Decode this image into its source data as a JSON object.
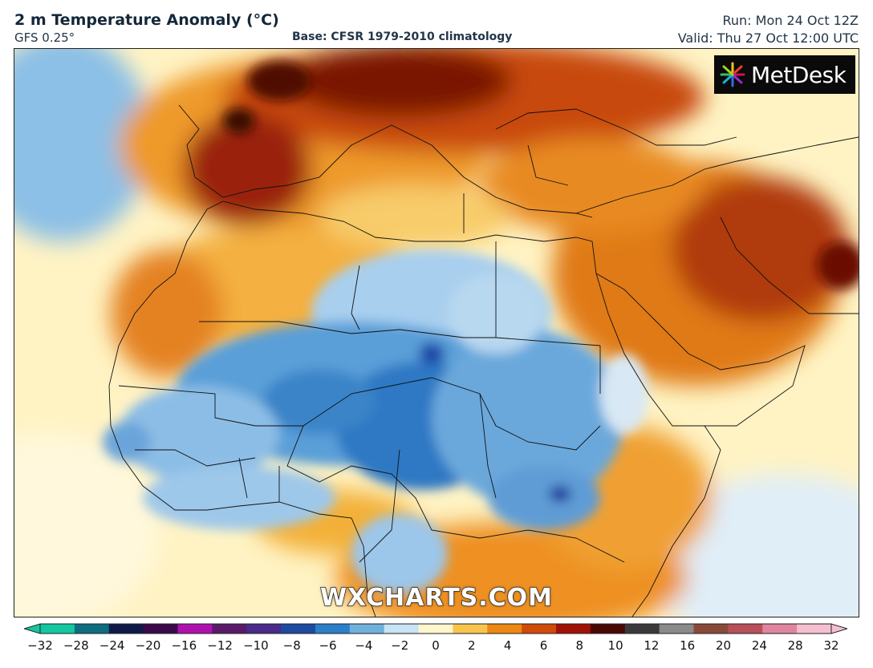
{
  "header": {
    "title": "2 m Temperature Anomaly (°C)",
    "model": "GFS 0.25°",
    "base": "Base: CFSR 1979-2010 climatology",
    "run": "Run: Mon 24 Oct 12Z",
    "valid": "Valid: Thu 27 Oct 12:00 UTC"
  },
  "logo": {
    "text": "MetDesk",
    "icon": "metdesk-starburst-icon"
  },
  "watermark": "WXCHARTS.COM",
  "colorbar": {
    "ticks": [
      "−32",
      "−28",
      "−24",
      "−20",
      "−16",
      "−12",
      "−10",
      "−8",
      "−6",
      "−4",
      "−2",
      "0",
      "2",
      "4",
      "6",
      "8",
      "10",
      "12",
      "16",
      "20",
      "24",
      "28",
      "32"
    ],
    "colors": [
      "#13c8a0",
      "#0d6e80",
      "#101a48",
      "#3a0a4a",
      "#b010b0",
      "#5a1a6a",
      "#4a2a8a",
      "#1e4aa0",
      "#2c7fc9",
      "#70b0dd",
      "#c8e4f4",
      "#fff6cc",
      "#f9c44c",
      "#ee8812",
      "#d04a08",
      "#a01206",
      "#4a0804",
      "#3a3a3a",
      "#8a8a8a",
      "#8a4a3a",
      "#b8505a",
      "#e085a0",
      "#f4c0d0"
    ]
  },
  "regions": {
    "cold_anomaly": "#3a86cc",
    "warm_anomaly": "#d96b12",
    "hot_anomaly": "#8e1a06",
    "neutral": "#fff3c4"
  }
}
